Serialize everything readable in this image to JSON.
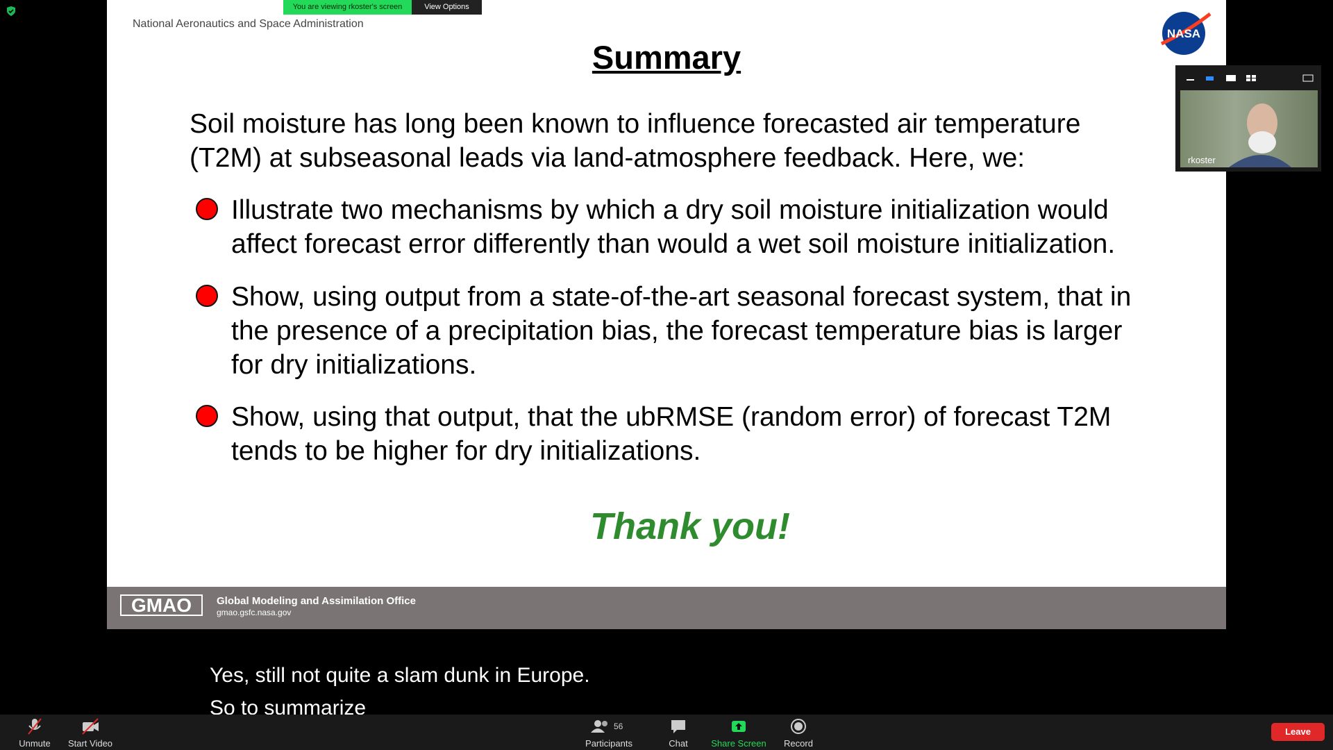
{
  "banner": {
    "viewing": "You are viewing rkoster's screen",
    "options": "View Options"
  },
  "slide": {
    "org": "National Aeronautics and Space Administration",
    "logo": "NASA",
    "title": "Summary",
    "intro": [
      "Soil moisture has long been known to influence forecasted air temperature",
      "(T2M) at subseasonal leads via land-atmosphere feedback.  Here, we:"
    ],
    "bullets": [
      [
        "Illustrate two mechanisms by which a dry soil moisture initialization would",
        "affect forecast error differently than would a wet soil moisture initialization."
      ],
      [
        "Show, using output from a state-of-the-art seasonal forecast system, that in",
        "the presence of a precipitation bias, the forecast temperature bias is larger",
        "for dry initializations."
      ],
      [
        "Show, using that output, that the ubRMSE (random error) of forecast T2M",
        "tends to be higher for dry initializations."
      ]
    ],
    "closing": "Thank you!",
    "footer": {
      "logo": "GMAO",
      "name": "Global Modeling and Assimilation Office",
      "url": "gmao.gsfc.nasa.gov"
    }
  },
  "video": {
    "participant": "rkoster"
  },
  "captions": [
    "Yes, still not quite a slam dunk in Europe.",
    "So to summarize"
  ],
  "toolbar": {
    "unmute": "Unmute",
    "video": "Start Video",
    "participants": "Participants",
    "participant_count": "56",
    "chat": "Chat",
    "share": "Share Screen",
    "record": "Record",
    "leave": "Leave"
  }
}
